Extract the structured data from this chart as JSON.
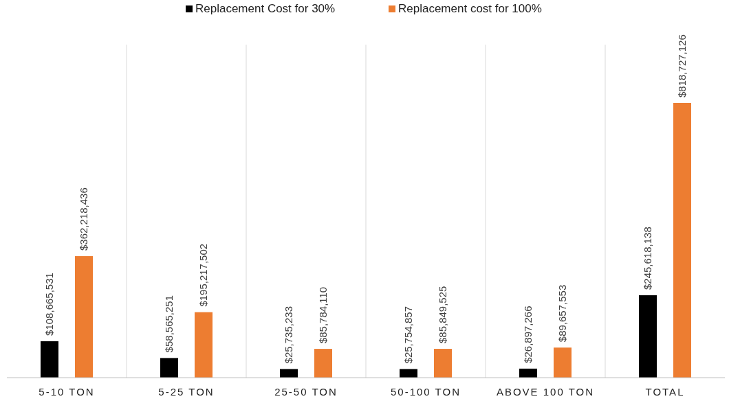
{
  "chart_data": {
    "type": "bar",
    "categories": [
      "5-10 TON",
      "5-25 TON",
      "25-50 TON",
      "50-100 TON",
      "ABOVE 100 TON",
      "TOTAL"
    ],
    "series": [
      {
        "name": "Replacement Cost for 30%",
        "color": "#000000",
        "values": [
          108665531,
          58565251,
          25735233,
          25754857,
          26897266,
          245618138
        ],
        "value_labels": [
          "$108,665,531",
          "$58,565,251",
          "$25,735,233",
          "$25,754,857",
          "$26,897,266",
          "$245,618,138"
        ]
      },
      {
        "name": "Replacement cost for 100%",
        "color": "#ed7d31",
        "values": [
          362218436,
          195217502,
          85784110,
          85849525,
          89657553,
          818727126
        ],
        "value_labels": [
          "$362,218,436",
          "$195,217,502",
          "$85,784,110",
          "$85,849,525",
          "$89,657,553",
          "$818,727,126"
        ]
      }
    ],
    "legend": "top",
    "grid": "x",
    "tick_labels": "x"
  }
}
